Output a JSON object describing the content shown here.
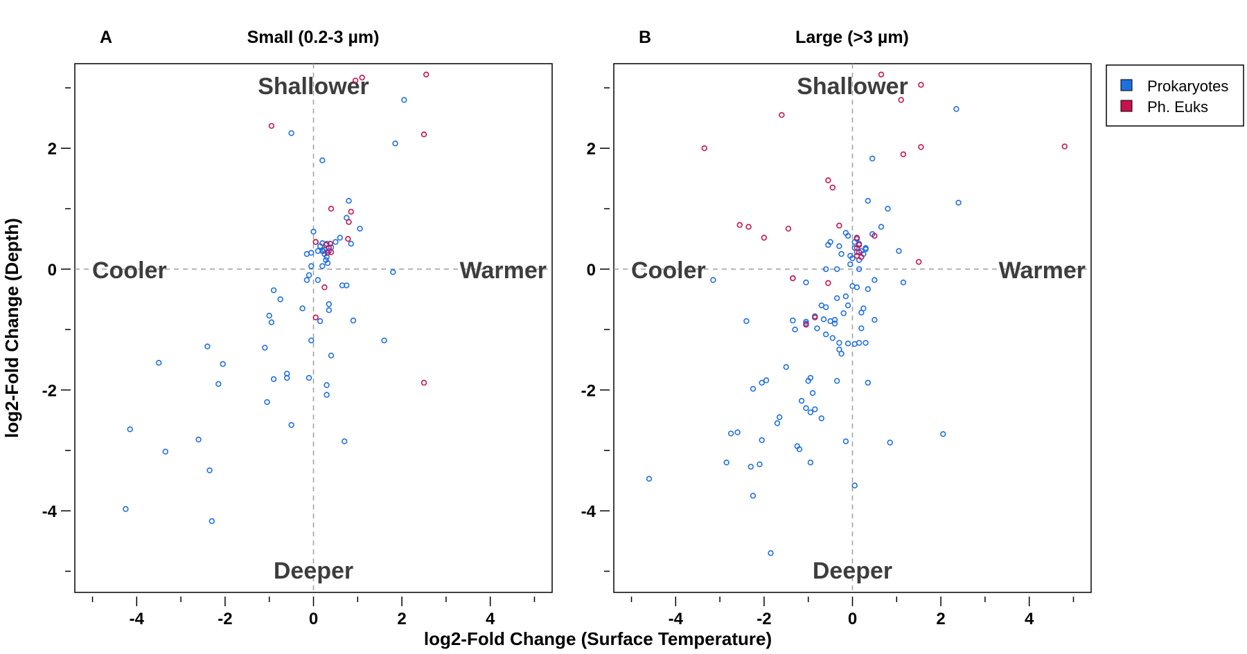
{
  "figure": {
    "xlabel": "log2-Fold Change (Surface Temperature)",
    "ylabel": "log2-Fold Change (Depth)"
  },
  "legend": {
    "items": [
      {
        "label": "Prokaryotes",
        "color": "#1f6fe0"
      },
      {
        "label": "Ph. Euks",
        "color": "#c8114f"
      }
    ]
  },
  "chart_data": [
    {
      "type": "scatter",
      "panel": "A",
      "title": "Small (0.2-3 µm)",
      "xlim": [
        -5.4,
        5.4
      ],
      "ylim": [
        -5.35,
        3.4
      ],
      "xticks": [
        -4,
        -2,
        0,
        2,
        4
      ],
      "xticks_minor": [
        -5,
        -3,
        -1,
        1,
        3,
        5
      ],
      "yticks": [
        -4,
        -2,
        0,
        2
      ],
      "yticks_minor": [
        -5,
        -3,
        -1,
        1,
        3
      ],
      "reference_lines": {
        "x": 0,
        "y": 0
      },
      "quadrant_labels": {
        "top": "Shallower",
        "bottom": "Deeper",
        "left": "Cooler",
        "right": "Warmer"
      },
      "series": [
        {
          "name": "Prokaryotes",
          "color": "#1f6fe0",
          "points": [
            [
              -0.5,
              2.25
            ],
            [
              2.05,
              2.8
            ],
            [
              1.85,
              2.08
            ],
            [
              0.2,
              1.8
            ],
            [
              0.8,
              1.13
            ],
            [
              0.75,
              0.85
            ],
            [
              1.05,
              0.67
            ],
            [
              0.6,
              0.52
            ],
            [
              0.85,
              0.42
            ],
            [
              0.5,
              0.45
            ],
            [
              0.0,
              0.62
            ],
            [
              0.05,
              0.45
            ],
            [
              0.15,
              0.38
            ],
            [
              0.2,
              0.43
            ],
            [
              0.1,
              0.3
            ],
            [
              0.2,
              0.3
            ],
            [
              0.25,
              0.25
            ],
            [
              0.3,
              0.2
            ],
            [
              0.35,
              0.3
            ],
            [
              0.28,
              0.15
            ],
            [
              0.32,
              0.1
            ],
            [
              0.25,
              0.32
            ],
            [
              0.4,
              0.36
            ],
            [
              0.3,
              0.42
            ],
            [
              0.22,
              0.3
            ],
            [
              -0.15,
              0.25
            ],
            [
              -0.05,
              0.27
            ],
            [
              0.2,
              0.05
            ],
            [
              -0.05,
              0.05
            ],
            [
              -0.1,
              -0.1
            ],
            [
              -0.15,
              -0.18
            ],
            [
              0.1,
              -0.18
            ],
            [
              0.65,
              -0.27
            ],
            [
              0.75,
              -0.27
            ],
            [
              1.8,
              -0.05
            ],
            [
              -0.9,
              -0.35
            ],
            [
              -0.75,
              -0.5
            ],
            [
              -0.25,
              -0.65
            ],
            [
              0.35,
              -0.58
            ],
            [
              0.35,
              -0.68
            ],
            [
              -1.0,
              -0.77
            ],
            [
              -0.95,
              -0.88
            ],
            [
              0.15,
              -0.86
            ],
            [
              0.9,
              -0.85
            ],
            [
              1.6,
              -1.18
            ],
            [
              -0.05,
              -1.18
            ],
            [
              -1.1,
              -1.3
            ],
            [
              0.4,
              -1.43
            ],
            [
              -0.6,
              -1.73
            ],
            [
              -0.6,
              -1.8
            ],
            [
              -0.9,
              -1.82
            ],
            [
              -0.1,
              -1.8
            ],
            [
              0.3,
              -1.92
            ],
            [
              0.3,
              -2.08
            ],
            [
              -1.05,
              -2.2
            ],
            [
              -0.5,
              -2.58
            ],
            [
              0.7,
              -2.85
            ],
            [
              -2.4,
              -1.28
            ],
            [
              -2.05,
              -1.57
            ],
            [
              -3.5,
              -1.55
            ],
            [
              -2.15,
              -1.9
            ],
            [
              -4.15,
              -2.65
            ],
            [
              -2.6,
              -2.82
            ],
            [
              -3.35,
              -3.02
            ],
            [
              -2.35,
              -3.33
            ],
            [
              -4.25,
              -3.97
            ],
            [
              -2.3,
              -4.17
            ]
          ]
        },
        {
          "name": "Ph. Euks",
          "color": "#c8114f",
          "points": [
            [
              -0.95,
              2.37
            ],
            [
              1.1,
              3.17
            ],
            [
              0.95,
              3.12
            ],
            [
              2.55,
              3.22
            ],
            [
              2.5,
              2.23
            ],
            [
              0.4,
              1.0
            ],
            [
              0.85,
              0.95
            ],
            [
              0.8,
              0.78
            ],
            [
              0.78,
              0.5
            ],
            [
              0.05,
              0.45
            ],
            [
              0.28,
              0.4
            ],
            [
              0.38,
              0.42
            ],
            [
              0.35,
              0.35
            ],
            [
              0.4,
              0.28
            ],
            [
              0.32,
              0.27
            ],
            [
              0.25,
              -0.3
            ],
            [
              0.05,
              -0.8
            ],
            [
              2.5,
              -1.88
            ]
          ]
        }
      ]
    },
    {
      "type": "scatter",
      "panel": "B",
      "title": "Large (>3 µm)",
      "xlim": [
        -5.4,
        5.4
      ],
      "ylim": [
        -5.35,
        3.4
      ],
      "xticks": [
        -4,
        -2,
        0,
        2,
        4
      ],
      "xticks_minor": [
        -5,
        -3,
        -1,
        1,
        3,
        5
      ],
      "yticks": [
        -4,
        -2,
        0,
        2
      ],
      "yticks_minor": [
        -5,
        -3,
        -1,
        1,
        3
      ],
      "reference_lines": {
        "x": 0,
        "y": 0
      },
      "quadrant_labels": {
        "top": "Shallower",
        "bottom": "Deeper",
        "left": "Cooler",
        "right": "Warmer"
      },
      "series": [
        {
          "name": "Prokaryotes",
          "color": "#1f6fe0",
          "points": [
            [
              2.35,
              2.65
            ],
            [
              2.4,
              1.1
            ],
            [
              0.45,
              1.83
            ],
            [
              0.35,
              1.13
            ],
            [
              0.8,
              1.0
            ],
            [
              0.65,
              0.7
            ],
            [
              0.45,
              0.58
            ],
            [
              1.05,
              0.3
            ],
            [
              0.3,
              0.33
            ],
            [
              0.1,
              0.5
            ],
            [
              0.05,
              0.45
            ],
            [
              0.15,
              0.42
            ],
            [
              0.2,
              0.3
            ],
            [
              0.1,
              0.28
            ],
            [
              0.25,
              0.25
            ],
            [
              0.3,
              0.35
            ],
            [
              0.05,
              0.35
            ],
            [
              -0.15,
              0.6
            ],
            [
              -0.1,
              0.55
            ],
            [
              -0.3,
              0.38
            ],
            [
              -0.5,
              0.45
            ],
            [
              -0.55,
              0.4
            ],
            [
              -0.25,
              0.25
            ],
            [
              -0.05,
              0.22
            ],
            [
              0.0,
              0.18
            ],
            [
              0.15,
              0.15
            ],
            [
              -0.05,
              0.08
            ],
            [
              0.15,
              0.0
            ],
            [
              -0.35,
              0.0
            ],
            [
              -0.6,
              0.0
            ],
            [
              -3.15,
              -0.18
            ],
            [
              -1.35,
              -0.15
            ],
            [
              -1.05,
              -0.22
            ],
            [
              0.0,
              -0.28
            ],
            [
              0.1,
              -0.3
            ],
            [
              0.35,
              -0.33
            ],
            [
              0.5,
              -0.18
            ],
            [
              1.15,
              -0.22
            ],
            [
              -0.7,
              -0.6
            ],
            [
              -0.6,
              -0.63
            ],
            [
              -0.35,
              -0.48
            ],
            [
              -0.15,
              -0.45
            ],
            [
              -0.1,
              -0.6
            ],
            [
              0.25,
              -0.65
            ],
            [
              0.2,
              -0.72
            ],
            [
              -0.85,
              -0.78
            ],
            [
              -0.65,
              -0.83
            ],
            [
              -0.5,
              -0.86
            ],
            [
              -0.2,
              -0.73
            ],
            [
              -0.4,
              -0.84
            ],
            [
              -0.4,
              -0.9
            ],
            [
              0.5,
              -0.84
            ],
            [
              0.2,
              -0.98
            ],
            [
              -1.35,
              -0.85
            ],
            [
              -1.3,
              -1.0
            ],
            [
              -1.05,
              -0.87
            ],
            [
              -1.05,
              -0.9
            ],
            [
              -0.8,
              -0.98
            ],
            [
              -0.6,
              -1.08
            ],
            [
              -0.45,
              -1.14
            ],
            [
              -0.3,
              -1.22
            ],
            [
              -0.1,
              -1.23
            ],
            [
              0.05,
              -1.24
            ],
            [
              0.15,
              -1.22
            ],
            [
              0.3,
              -1.22
            ],
            [
              -0.3,
              -1.33
            ],
            [
              -0.25,
              -1.4
            ],
            [
              -2.4,
              -0.86
            ],
            [
              -1.5,
              -1.62
            ],
            [
              -0.35,
              -1.85
            ],
            [
              0.35,
              -1.88
            ],
            [
              -1.15,
              -2.18
            ],
            [
              -0.95,
              -1.8
            ],
            [
              -1.0,
              -1.85
            ],
            [
              -0.9,
              -2.05
            ],
            [
              -2.05,
              -1.88
            ],
            [
              -2.25,
              -1.98
            ],
            [
              -1.95,
              -1.84
            ],
            [
              -1.05,
              -2.3
            ],
            [
              -0.85,
              -2.32
            ],
            [
              -0.95,
              -2.37
            ],
            [
              -0.7,
              -2.47
            ],
            [
              -1.65,
              -2.45
            ],
            [
              -1.7,
              -2.55
            ],
            [
              -2.05,
              -2.83
            ],
            [
              -2.6,
              -2.7
            ],
            [
              -2.75,
              -2.72
            ],
            [
              -1.25,
              -2.93
            ],
            [
              -1.2,
              -2.98
            ],
            [
              -0.15,
              -2.85
            ],
            [
              0.85,
              -2.87
            ],
            [
              2.05,
              -2.73
            ],
            [
              -2.85,
              -3.2
            ],
            [
              -2.3,
              -3.27
            ],
            [
              -2.1,
              -3.23
            ],
            [
              -0.95,
              -3.2
            ],
            [
              0.05,
              -3.58
            ],
            [
              -2.25,
              -3.75
            ],
            [
              -4.6,
              -3.47
            ],
            [
              -1.85,
              -4.7
            ]
          ]
        },
        {
          "name": "Ph. Euks",
          "color": "#c8114f",
          "points": [
            [
              0.65,
              3.22
            ],
            [
              1.55,
              3.05
            ],
            [
              1.1,
              2.8
            ],
            [
              -1.6,
              2.55
            ],
            [
              -3.35,
              2.0
            ],
            [
              1.15,
              1.9
            ],
            [
              1.55,
              2.02
            ],
            [
              4.8,
              2.03
            ],
            [
              -0.55,
              1.47
            ],
            [
              -0.45,
              1.35
            ],
            [
              -2.55,
              0.73
            ],
            [
              -2.35,
              0.7
            ],
            [
              -1.45,
              0.67
            ],
            [
              -2.0,
              0.52
            ],
            [
              -0.3,
              0.72
            ],
            [
              0.5,
              0.55
            ],
            [
              0.1,
              0.52
            ],
            [
              0.15,
              0.4
            ],
            [
              0.1,
              0.35
            ],
            [
              0.15,
              0.28
            ],
            [
              0.1,
              0.22
            ],
            [
              0.2,
              0.2
            ],
            [
              1.5,
              0.12
            ],
            [
              -1.35,
              -0.15
            ],
            [
              -0.55,
              -0.23
            ],
            [
              -1.05,
              -0.92
            ],
            [
              -0.85,
              -0.8
            ]
          ]
        }
      ]
    }
  ]
}
